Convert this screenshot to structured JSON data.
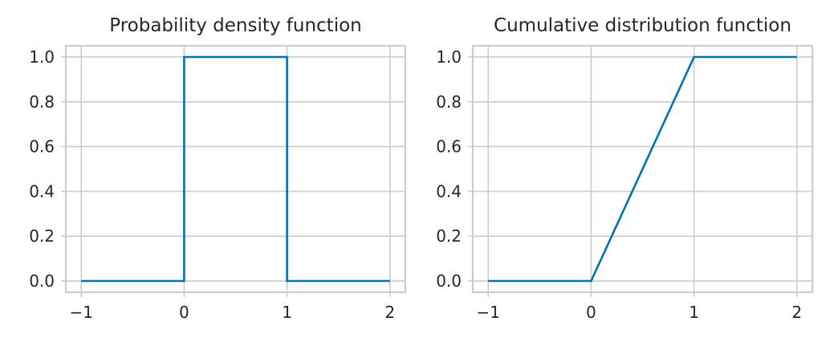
{
  "chart_data": [
    {
      "type": "line",
      "title": "Probability density function",
      "xlabel": "",
      "ylabel": "",
      "xlim": [
        -1.15,
        2.15
      ],
      "ylim": [
        -0.05,
        1.05
      ],
      "xticks": [
        -1,
        0,
        1,
        2
      ],
      "xtick_labels": [
        "−1",
        "0",
        "1",
        "2"
      ],
      "yticks": [
        0.0,
        0.2,
        0.4,
        0.6,
        0.8,
        1.0
      ],
      "ytick_labels": [
        "0.0",
        "0.2",
        "0.4",
        "0.6",
        "0.8",
        "1.0"
      ],
      "grid": true,
      "legend": "none",
      "series": [
        {
          "color": "#0072b2",
          "x": [
            -1,
            0,
            0,
            1,
            1,
            2
          ],
          "y": [
            0,
            0,
            1,
            1,
            0,
            0
          ]
        }
      ]
    },
    {
      "type": "line",
      "title": "Cumulative distribution function",
      "xlabel": "",
      "ylabel": "",
      "xlim": [
        -1.15,
        2.15
      ],
      "ylim": [
        -0.05,
        1.05
      ],
      "xticks": [
        -1,
        0,
        1,
        2
      ],
      "xtick_labels": [
        "−1",
        "0",
        "1",
        "2"
      ],
      "yticks": [
        0.0,
        0.2,
        0.4,
        0.6,
        0.8,
        1.0
      ],
      "ytick_labels": [
        "0.0",
        "0.2",
        "0.4",
        "0.6",
        "0.8",
        "1.0"
      ],
      "grid": true,
      "legend": "none",
      "series": [
        {
          "color": "#0072b2",
          "x": [
            -1,
            0,
            1,
            2
          ],
          "y": [
            0,
            0,
            1,
            1
          ]
        }
      ]
    }
  ]
}
